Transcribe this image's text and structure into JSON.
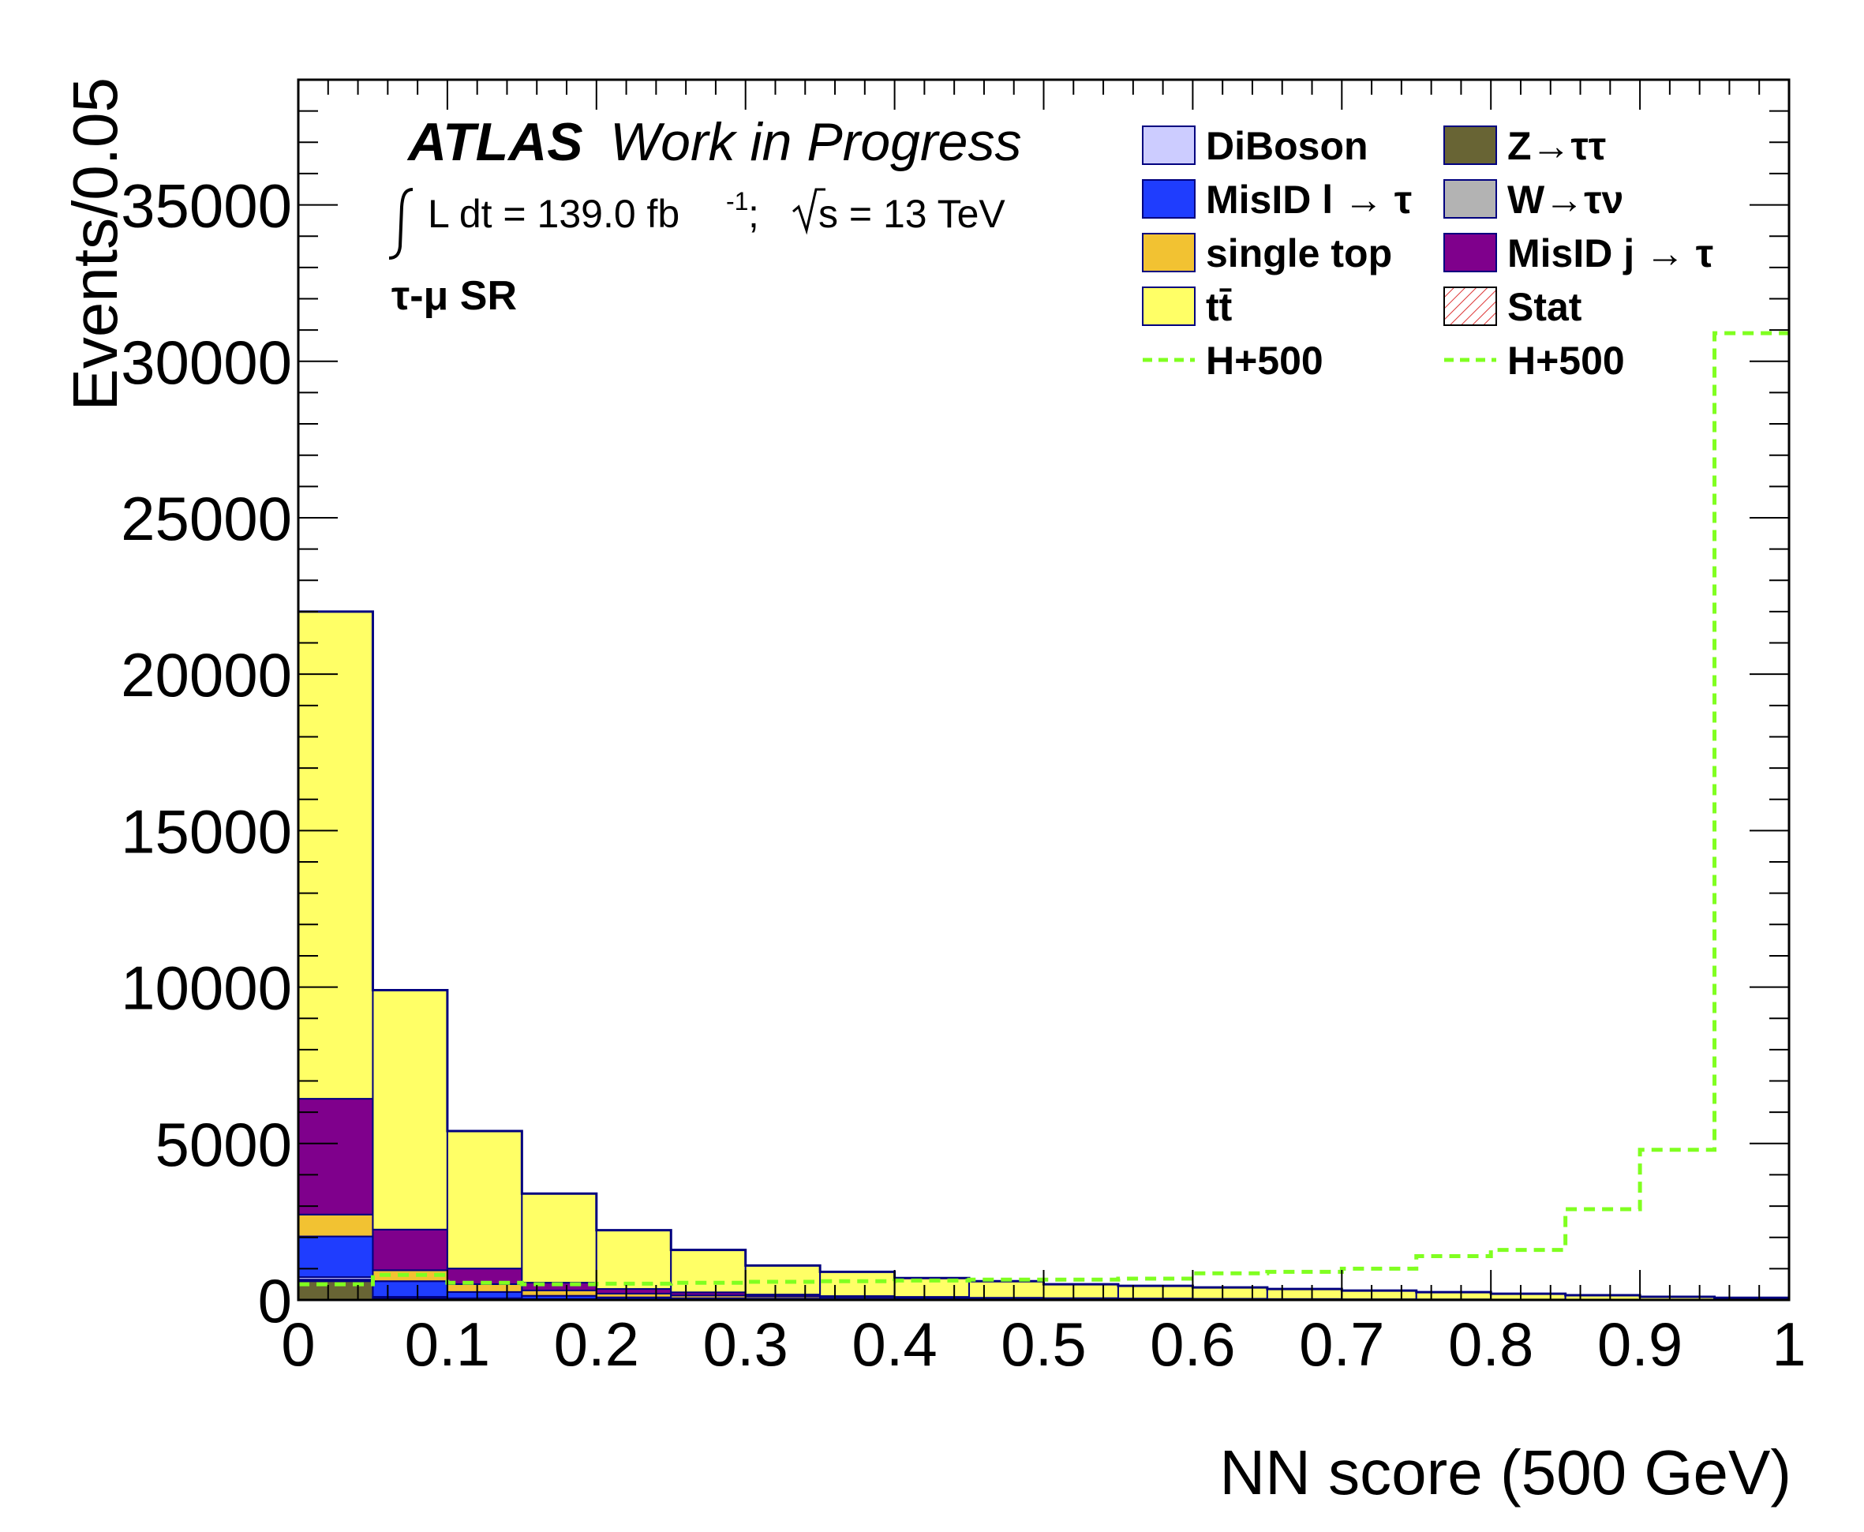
{
  "chart_data": {
    "type": "bar",
    "subtype": "stacked-histogram",
    "xlabel": "NN score (500 GeV)",
    "ylabel": "Events/0.05",
    "xlim": [
      0,
      1
    ],
    "ylim": [
      0,
      39000
    ],
    "x_ticks": [
      "0",
      "0.1",
      "0.2",
      "0.3",
      "0.4",
      "0.5",
      "0.6",
      "0.7",
      "0.8",
      "0.9",
      "1"
    ],
    "y_ticks": [
      "0",
      "5000",
      "10000",
      "15000",
      "20000",
      "25000",
      "30000",
      "35000"
    ],
    "bin_edges": [
      0,
      0.05,
      0.1,
      0.15,
      0.2,
      0.25,
      0.3,
      0.35,
      0.4,
      0.45,
      0.5,
      0.55,
      0.6,
      0.65,
      0.7,
      0.75,
      0.8,
      0.85,
      0.9,
      0.95,
      1.0
    ],
    "annotations": {
      "atlas": "ATLAS",
      "status": "Work in Progress",
      "lumi_prefix": "L dt = 139.0 fb",
      "lumi_exp": "-1",
      "lumi_suffix": ";",
      "energy_suffix": "s = 13 TeV",
      "region": "τ-μ SR"
    },
    "series": [
      {
        "name": "Z→ττ",
        "color": "#686434",
        "values": [
          600,
          60,
          30,
          15,
          10,
          5,
          5,
          3,
          3,
          2,
          2,
          2,
          1,
          1,
          1,
          1,
          1,
          1,
          0,
          0
        ]
      },
      {
        "name": "W→τν",
        "color": "#b3b3b3",
        "values": [
          50,
          10,
          5,
          3,
          2,
          1,
          1,
          1,
          1,
          0,
          0,
          0,
          0,
          0,
          0,
          0,
          0,
          0,
          0,
          0
        ]
      },
      {
        "name": "DiBoson",
        "color": "#ccccff",
        "values": [
          80,
          30,
          20,
          15,
          10,
          8,
          6,
          5,
          4,
          3,
          3,
          2,
          2,
          2,
          1,
          1,
          1,
          1,
          1,
          1
        ]
      },
      {
        "name": "MisID l → τ",
        "color": "#1f3dfe",
        "values": [
          1300,
          500,
          200,
          100,
          60,
          40,
          30,
          20,
          15,
          10,
          8,
          6,
          5,
          4,
          3,
          3,
          2,
          2,
          1,
          1
        ]
      },
      {
        "name": "single top",
        "color": "#f2c232",
        "values": [
          700,
          350,
          250,
          170,
          120,
          90,
          70,
          55,
          45,
          35,
          30,
          25,
          20,
          15,
          12,
          10,
          8,
          6,
          5,
          3
        ]
      },
      {
        "name": "MisID j → τ",
        "color": "#7f008c",
        "values": [
          3700,
          1300,
          500,
          250,
          150,
          100,
          60,
          40,
          30,
          20,
          15,
          12,
          10,
          8,
          6,
          5,
          4,
          3,
          2,
          1
        ]
      },
      {
        "name": "tt̄",
        "color": "#ffff66",
        "values": [
          15570,
          7650,
          4395,
          2847,
          1878,
          1356,
          928,
          776,
          602,
          530,
          442,
          403,
          362,
          320,
          277,
          230,
          184,
          137,
          91,
          64
        ]
      }
    ],
    "overlay": {
      "name": "H+500",
      "color": "#80ff20",
      "style": "dashed",
      "values": [
        500,
        800,
        550,
        500,
        520,
        550,
        580,
        600,
        620,
        650,
        650,
        680,
        850,
        900,
        1000,
        1400,
        1600,
        2900,
        4800,
        30900
      ]
    },
    "legend": [
      {
        "label": "DiBoson",
        "kind": "box",
        "color": "#ccccff"
      },
      {
        "label": "Z→ττ",
        "kind": "box",
        "color": "#686434"
      },
      {
        "label": "MisID l → τ",
        "kind": "box",
        "color": "#1f3dfe"
      },
      {
        "label": "W→τν",
        "kind": "box",
        "color": "#b3b3b3"
      },
      {
        "label": "single top",
        "kind": "box",
        "color": "#f2c232"
      },
      {
        "label": "MisID j → τ",
        "kind": "box",
        "color": "#7f008c"
      },
      {
        "label": "tt̄",
        "kind": "box",
        "color": "#ffff66"
      },
      {
        "label": "Stat",
        "kind": "hatch",
        "color": "#dd3333"
      },
      {
        "label": "H+500",
        "kind": "line",
        "color": "#80ff20"
      },
      {
        "label": "H+500",
        "kind": "line",
        "color": "#80ff20"
      }
    ],
    "legend_placement": "top-right",
    "outline_color": "#00007f",
    "grid": false
  }
}
